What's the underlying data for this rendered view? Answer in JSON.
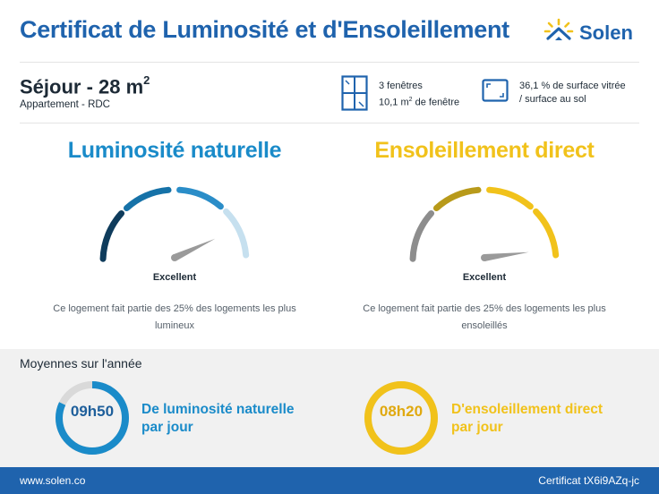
{
  "header": {
    "title": "Certificat de Luminosité et d'Ensoleillement",
    "brand": "Solen"
  },
  "room": {
    "name": "Séjour - 28 m",
    "area_unit_exp": "2",
    "subtitle": "Appartement - RDC"
  },
  "windows": {
    "count_label": "3 fenêtres",
    "area_label": "10,1 m",
    "area_exp": "2",
    "area_suffix": " de fenêtre",
    "icon": "window-icon"
  },
  "surface": {
    "line1": "36,1 % de surface vitrée",
    "line2": "/ surface au sol",
    "icon": "surface-ratio-icon"
  },
  "gauges": [
    {
      "title": "Luminosité naturelle",
      "level": "Excellent",
      "description": "Ce logement fait partie des 25% des logements les plus lumineux",
      "needle_fraction": 0.86,
      "segment_colors": [
        "#0f3c5c",
        "#1672a8",
        "#2a8dc8",
        "#c6e0ef"
      ]
    },
    {
      "title": "Ensoleillement direct",
      "level": "Excellent",
      "description": "Ce logement fait partie des 25% des logements les plus ensoleillés",
      "needle_fraction": 0.96,
      "segment_colors": [
        "#8d8d8d",
        "#b89a1a",
        "#f1c21b",
        "#f1c21b"
      ]
    }
  ],
  "averages": {
    "title": "Moyennes sur l'année",
    "items": [
      {
        "value": "09h50",
        "line1": "De luminosité naturelle",
        "line2": "par jour",
        "fraction": 0.82,
        "color": "#1a8bc9"
      },
      {
        "value": "08h20",
        "line1": "D'ensoleillement direct",
        "line2": "par jour",
        "fraction": 1.0,
        "color": "#f1c21b"
      }
    ]
  },
  "footer": {
    "url": "www.solen.co",
    "certificate": "Certificat tX6i9AZq-jc"
  },
  "colors": {
    "brand_blue": "#1f63ad",
    "light_blue": "#1a8bc9",
    "yellow": "#f1c21b"
  }
}
